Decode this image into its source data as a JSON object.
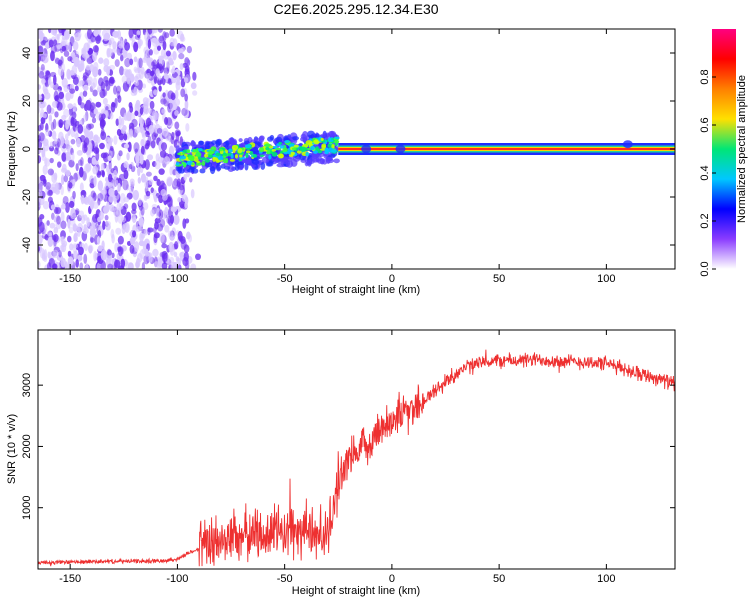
{
  "title": "C2E6.2025.295.12.34.E30",
  "colors": {
    "snr_line": "#ee3030",
    "spec_background": "#ffffff",
    "spec_points_primary": "#6b2ef0",
    "spec_points_light": "#d9c8ff",
    "spec_band": "#ff2d20",
    "spec_band_edges": [
      "#22d39a",
      "#2a3bff"
    ],
    "colorbar_stops": [
      "#ffffff",
      "#8a3cff",
      "#0000ff",
      "#00c8ff",
      "#00e676",
      "#ffe000",
      "#ff8000",
      "#ff0000",
      "#ff0080"
    ]
  },
  "chart_data": [
    {
      "type": "heatmap",
      "title": "C2E6.2025.295.12.34.E30",
      "xlabel": "Height of straight line (km)",
      "ylabel": "Frequency (Hz)",
      "xlim": [
        -165,
        132
      ],
      "ylim": [
        -50,
        50
      ],
      "xticks": [
        -150,
        -100,
        -50,
        0,
        50,
        100
      ],
      "yticks": [
        -40,
        -20,
        0,
        20,
        40
      ],
      "colorbar": {
        "label": "Normalized spectral amplitude",
        "range": [
          0,
          1
        ],
        "ticks": [
          0.0,
          0.2,
          0.4,
          0.6,
          0.8
        ]
      },
      "regions": [
        {
          "description": "noise",
          "x": [
            -165,
            -90
          ],
          "freq_range": [
            -50,
            50
          ],
          "amplitude": [
            0.05,
            0.2
          ]
        },
        {
          "description": "developing signal",
          "x": [
            -100,
            -25
          ],
          "freq_range": [
            -10,
            5
          ],
          "amplitude": [
            0.2,
            0.6
          ]
        },
        {
          "description": "steady signal",
          "x": [
            -25,
            132
          ],
          "freq": 0,
          "amplitude": [
            0.9,
            1.0
          ]
        }
      ],
      "grid": false
    },
    {
      "type": "line",
      "xlabel": "Height of straight line (km)",
      "ylabel": "SNR (10 * v/v)",
      "xlim": [
        -165,
        132
      ],
      "ylim": [
        0,
        3900
      ],
      "xticks": [
        -150,
        -100,
        -50,
        0,
        50,
        100
      ],
      "yticks": [
        1000,
        2000,
        3000
      ],
      "series": [
        {
          "x": [
            -165,
            -140,
            -110,
            -100,
            -95,
            -90,
            -85,
            -80,
            -75,
            -70,
            -65,
            -60,
            -55,
            -50,
            -45,
            -40,
            -35,
            -30,
            -25,
            -22,
            -20,
            -18,
            -15,
            -10,
            -5,
            0,
            5,
            10,
            15,
            20,
            25,
            30,
            35,
            40,
            45,
            50,
            60,
            70,
            80,
            90,
            100,
            105,
            110,
            115,
            120,
            125,
            132
          ],
          "y": [
            100,
            120,
            130,
            160,
            260,
            330,
            400,
            450,
            520,
            560,
            560,
            590,
            600,
            620,
            600,
            620,
            590,
            560,
            1400,
            1700,
            1800,
            1850,
            1900,
            2100,
            2300,
            2450,
            2550,
            2650,
            2750,
            2900,
            3050,
            3200,
            3300,
            3350,
            3380,
            3400,
            3400,
            3420,
            3380,
            3380,
            3350,
            3300,
            3250,
            3200,
            3150,
            3100,
            3020
          ]
        }
      ],
      "grid": false
    }
  ]
}
